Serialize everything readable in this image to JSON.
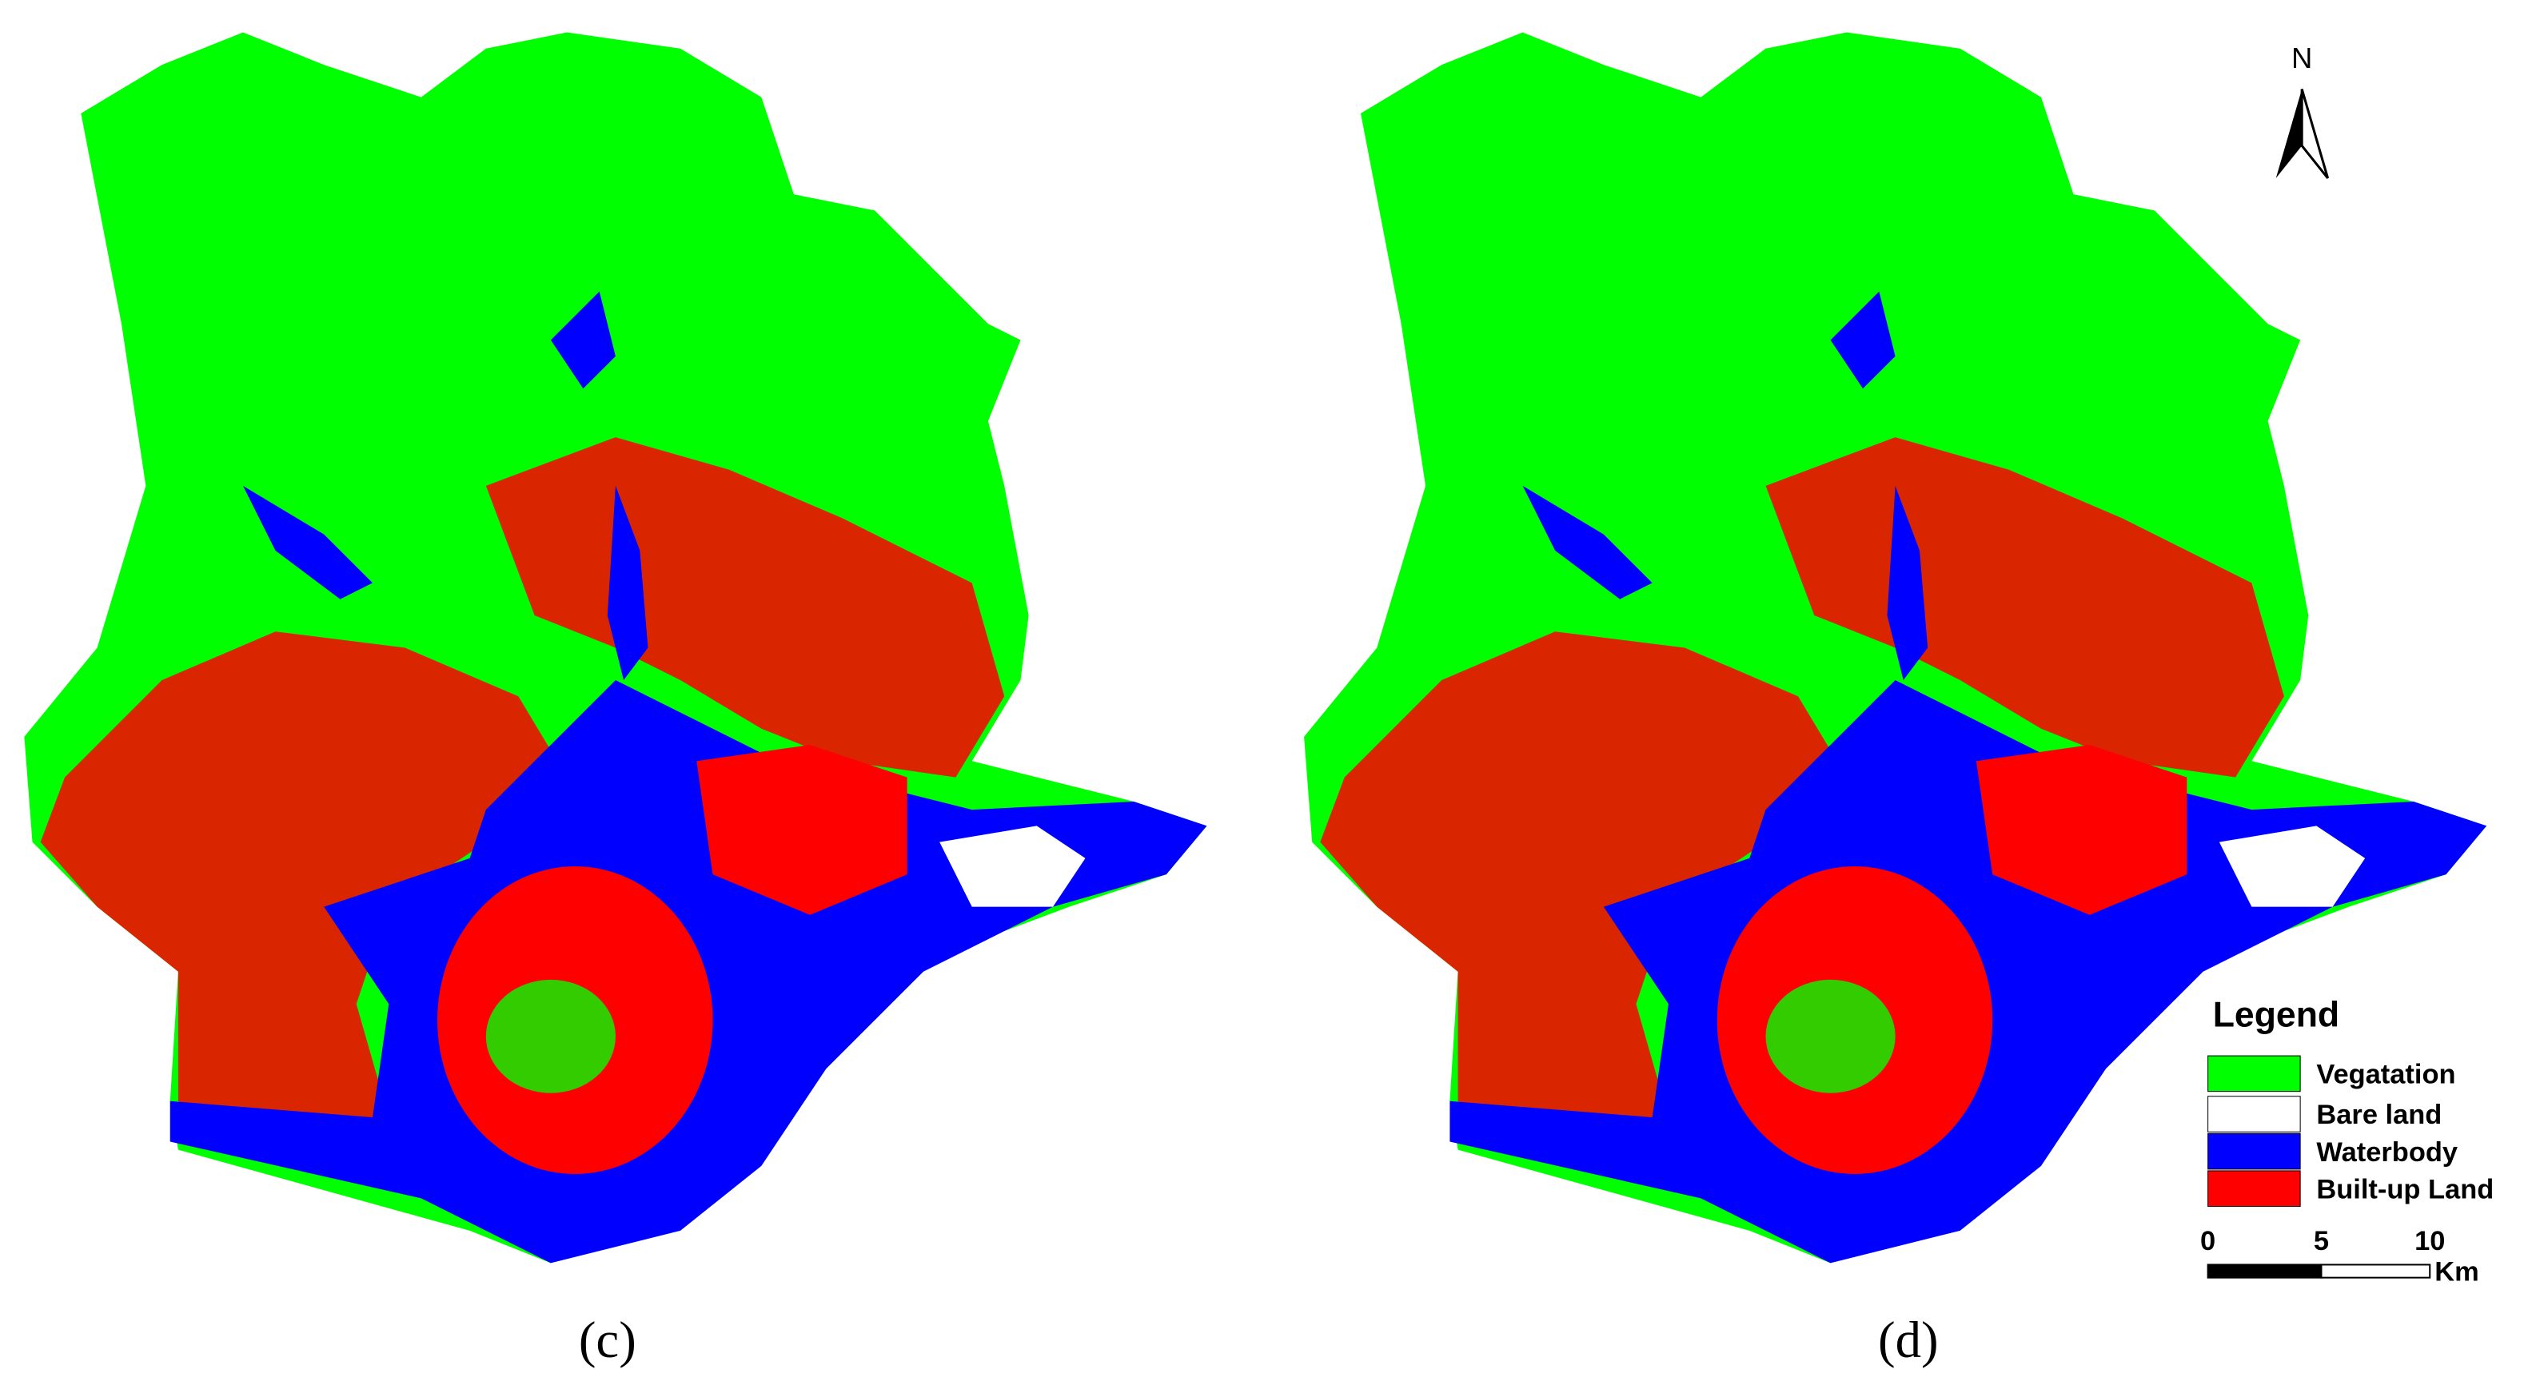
{
  "maps": [
    {
      "label": "(c)"
    },
    {
      "label": "(d)"
    }
  ],
  "north_arrow": {
    "label": "N"
  },
  "legend": {
    "title": "Legend",
    "items": [
      {
        "name": "Vegatation",
        "color": "#00ff00"
      },
      {
        "name": "Bare land",
        "color": "#ffffff"
      },
      {
        "name": "Waterbody",
        "color": "#0000ff"
      },
      {
        "name": "Built-up Land",
        "color": "#ff0000"
      }
    ]
  },
  "scale_bar": {
    "labels": [
      "0",
      "5",
      "10"
    ],
    "unit": "Km"
  }
}
